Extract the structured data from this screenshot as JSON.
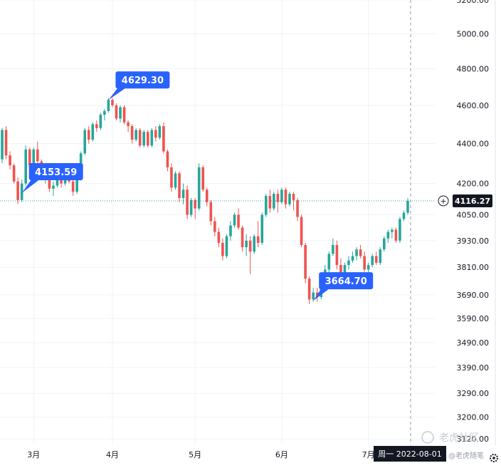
{
  "chart_data": {
    "type": "candlestick",
    "x_ticks": [
      "3月",
      "4月",
      "5月",
      "6月",
      "7月"
    ],
    "y_ticks": [
      "5200.00",
      "5000.00",
      "4800.00",
      "4600.00",
      "4400.00",
      "4200.00",
      "4050.00",
      "3930.00",
      "3810.00",
      "3690.00",
      "3590.00",
      "3490.00",
      "3390.00",
      "3290.00",
      "3200.00",
      "3120.00"
    ],
    "ylim": [
      3100,
      5200
    ],
    "y_scale": "log",
    "callouts": [
      {
        "label": "4629.30",
        "kind": "high"
      },
      {
        "label": "4153.59",
        "kind": "low"
      },
      {
        "label": "3664.70",
        "kind": "low"
      }
    ],
    "current_price": "4116.27",
    "crosshair_date": "周一 2022-08-01",
    "colors": {
      "up": "#26a69a",
      "down": "#ef5350",
      "callout": "#2962ff",
      "price_line": "#26a69a",
      "axis_text": "#131722"
    },
    "candles": [
      [
        4320,
        4480,
        4300,
        4470
      ],
      [
        4470,
        4490,
        4320,
        4340
      ],
      [
        4340,
        4360,
        4270,
        4290
      ],
      [
        4290,
        4300,
        4200,
        4210
      ],
      [
        4210,
        4230,
        4100,
        4120
      ],
      [
        4120,
        4220,
        4110,
        4200
      ],
      [
        4200,
        4390,
        4190,
        4370
      ],
      [
        4370,
        4380,
        4280,
        4290
      ],
      [
        4290,
        4380,
        4280,
        4370
      ],
      [
        4370,
        4410,
        4300,
        4310
      ],
      [
        4310,
        4320,
        4220,
        4240
      ],
      [
        4240,
        4300,
        4200,
        4290
      ],
      [
        4290,
        4300,
        4160,
        4175
      ],
      [
        4175,
        4210,
        4140,
        4190
      ],
      [
        4190,
        4280,
        4180,
        4270
      ],
      [
        4270,
        4275,
        4180,
        4200
      ],
      [
        4200,
        4290,
        4190,
        4280
      ],
      [
        4280,
        4300,
        4200,
        4210
      ],
      [
        4210,
        4240,
        4140,
        4160
      ],
      [
        4160,
        4230,
        4150,
        4220
      ],
      [
        4220,
        4360,
        4215,
        4350
      ],
      [
        4350,
        4480,
        4340,
        4470
      ],
      [
        4470,
        4490,
        4400,
        4420
      ],
      [
        4420,
        4510,
        4410,
        4500
      ],
      [
        4500,
        4520,
        4460,
        4480
      ],
      [
        4480,
        4560,
        4470,
        4550
      ],
      [
        4550,
        4580,
        4520,
        4570
      ],
      [
        4570,
        4640,
        4560,
        4630
      ],
      [
        4630,
        4640,
        4590,
        4600
      ],
      [
        4600,
        4610,
        4520,
        4530
      ],
      [
        4530,
        4600,
        4510,
        4590
      ],
      [
        4590,
        4600,
        4500,
        4510
      ],
      [
        4510,
        4520,
        4460,
        4490
      ],
      [
        4490,
        4500,
        4400,
        4420
      ],
      [
        4420,
        4480,
        4410,
        4470
      ],
      [
        4470,
        4480,
        4380,
        4390
      ],
      [
        4390,
        4470,
        4380,
        4460
      ],
      [
        4460,
        4470,
        4380,
        4390
      ],
      [
        4390,
        4480,
        4380,
        4470
      ],
      [
        4470,
        4490,
        4410,
        4430
      ],
      [
        4430,
        4500,
        4420,
        4490
      ],
      [
        4490,
        4510,
        4350,
        4360
      ],
      [
        4360,
        4370,
        4260,
        4280
      ],
      [
        4280,
        4300,
        4160,
        4180
      ],
      [
        4180,
        4260,
        4170,
        4250
      ],
      [
        4250,
        4260,
        4110,
        4130
      ],
      [
        4130,
        4200,
        4100,
        4170
      ],
      [
        4170,
        4190,
        4030,
        4050
      ],
      [
        4050,
        4130,
        4040,
        4120
      ],
      [
        4120,
        4130,
        4030,
        4080
      ],
      [
        4080,
        4300,
        4070,
        4280
      ],
      [
        4280,
        4290,
        4160,
        4170
      ],
      [
        4170,
        4180,
        4090,
        4110
      ],
      [
        4110,
        4120,
        4000,
        4020
      ],
      [
        4020,
        4040,
        3950,
        3970
      ],
      [
        3970,
        3990,
        3900,
        3920
      ],
      [
        3920,
        3940,
        3840,
        3860
      ],
      [
        3860,
        3960,
        3850,
        3950
      ],
      [
        3950,
        4020,
        3930,
        4000
      ],
      [
        4000,
        4060,
        3990,
        4050
      ],
      [
        4050,
        4080,
        3980,
        3990
      ],
      [
        3990,
        4000,
        3880,
        3900
      ],
      [
        3900,
        3960,
        3860,
        3930
      ],
      [
        3930,
        3950,
        3780,
        3880
      ],
      [
        3880,
        3960,
        3870,
        3950
      ],
      [
        3950,
        4020,
        3900,
        3920
      ],
      [
        3920,
        4060,
        3910,
        4050
      ],
      [
        4050,
        4150,
        4040,
        4140
      ],
      [
        4140,
        4170,
        4060,
        4080
      ],
      [
        4080,
        4160,
        4070,
        4150
      ],
      [
        4150,
        4170,
        4060,
        4110
      ],
      [
        4110,
        4180,
        4100,
        4170
      ],
      [
        4170,
        4180,
        4080,
        4100
      ],
      [
        4100,
        4160,
        4090,
        4150
      ],
      [
        4150,
        4160,
        4070,
        4120
      ],
      [
        4120,
        4130,
        4020,
        4040
      ],
      [
        4040,
        4050,
        3900,
        3910
      ],
      [
        3910,
        3920,
        3740,
        3760
      ],
      [
        3760,
        3770,
        3650,
        3670
      ],
      [
        3670,
        3720,
        3660,
        3700
      ],
      [
        3700,
        3720,
        3660,
        3680
      ],
      [
        3680,
        3780,
        3670,
        3770
      ],
      [
        3770,
        3820,
        3760,
        3800
      ],
      [
        3800,
        3880,
        3780,
        3870
      ],
      [
        3870,
        3940,
        3860,
        3910
      ],
      [
        3910,
        3930,
        3800,
        3820
      ],
      [
        3820,
        3850,
        3750,
        3780
      ],
      [
        3780,
        3830,
        3770,
        3820
      ],
      [
        3820,
        3860,
        3800,
        3840
      ],
      [
        3840,
        3880,
        3830,
        3860
      ],
      [
        3860,
        3900,
        3840,
        3890
      ],
      [
        3890,
        3910,
        3850,
        3860
      ],
      [
        3860,
        3880,
        3790,
        3800
      ],
      [
        3800,
        3830,
        3760,
        3820
      ],
      [
        3820,
        3870,
        3810,
        3860
      ],
      [
        3860,
        3880,
        3820,
        3830
      ],
      [
        3830,
        3900,
        3820,
        3890
      ],
      [
        3890,
        3950,
        3880,
        3940
      ],
      [
        3940,
        3980,
        3920,
        3970
      ],
      [
        3970,
        3990,
        3940,
        3980
      ],
      [
        3980,
        3990,
        3920,
        3930
      ],
      [
        3930,
        4040,
        3920,
        4030
      ],
      [
        4030,
        4070,
        4020,
        4060
      ],
      [
        4060,
        4130,
        4050,
        4116.27
      ]
    ]
  },
  "watermark": {
    "brand": "老虎社区",
    "author": "@老虎随笔"
  }
}
